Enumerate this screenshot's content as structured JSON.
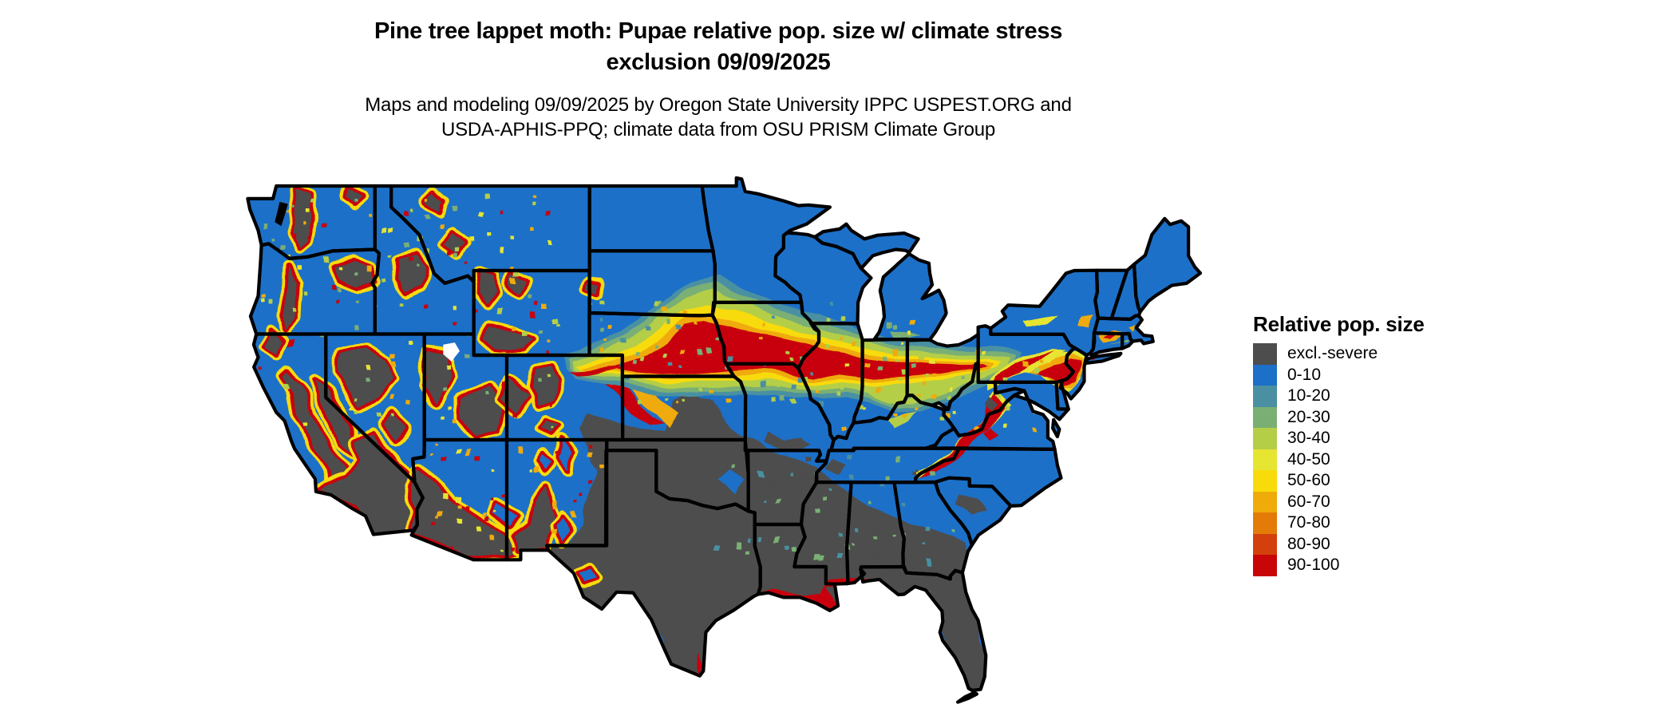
{
  "title": {
    "line1": "Pine tree lappet moth: Pupae relative pop. size w/ climate stress",
    "line2": "exclusion 09/09/2025"
  },
  "subtitle": {
    "line1": "Maps and modeling 09/09/2025 by Oregon State University IPPC USPEST.ORG and",
    "line2": "USDA-APHIS-PPQ; climate data from OSU PRISM Climate Group"
  },
  "legend": {
    "title": "Relative pop. size",
    "items": [
      {
        "label": "excl.-severe",
        "color": "#4D4D4D"
      },
      {
        "label": "0-10",
        "color": "#1C70C8"
      },
      {
        "label": "10-20",
        "color": "#4A90A2"
      },
      {
        "label": "20-30",
        "color": "#7AAF74"
      },
      {
        "label": "30-40",
        "color": "#B4CE47"
      },
      {
        "label": "40-50",
        "color": "#E6E532"
      },
      {
        "label": "50-60",
        "color": "#F8DB0B"
      },
      {
        "label": "60-70",
        "color": "#EFAB0A"
      },
      {
        "label": "70-80",
        "color": "#E47B08"
      },
      {
        "label": "80-90",
        "color": "#D4400B"
      },
      {
        "label": "90-100",
        "color": "#C80607"
      }
    ]
  },
  "map": {
    "region": "Contiguous United States",
    "kind": "raster suitability map with state borders",
    "border_color": "#000000",
    "background_color": "#FFFFFF"
  }
}
